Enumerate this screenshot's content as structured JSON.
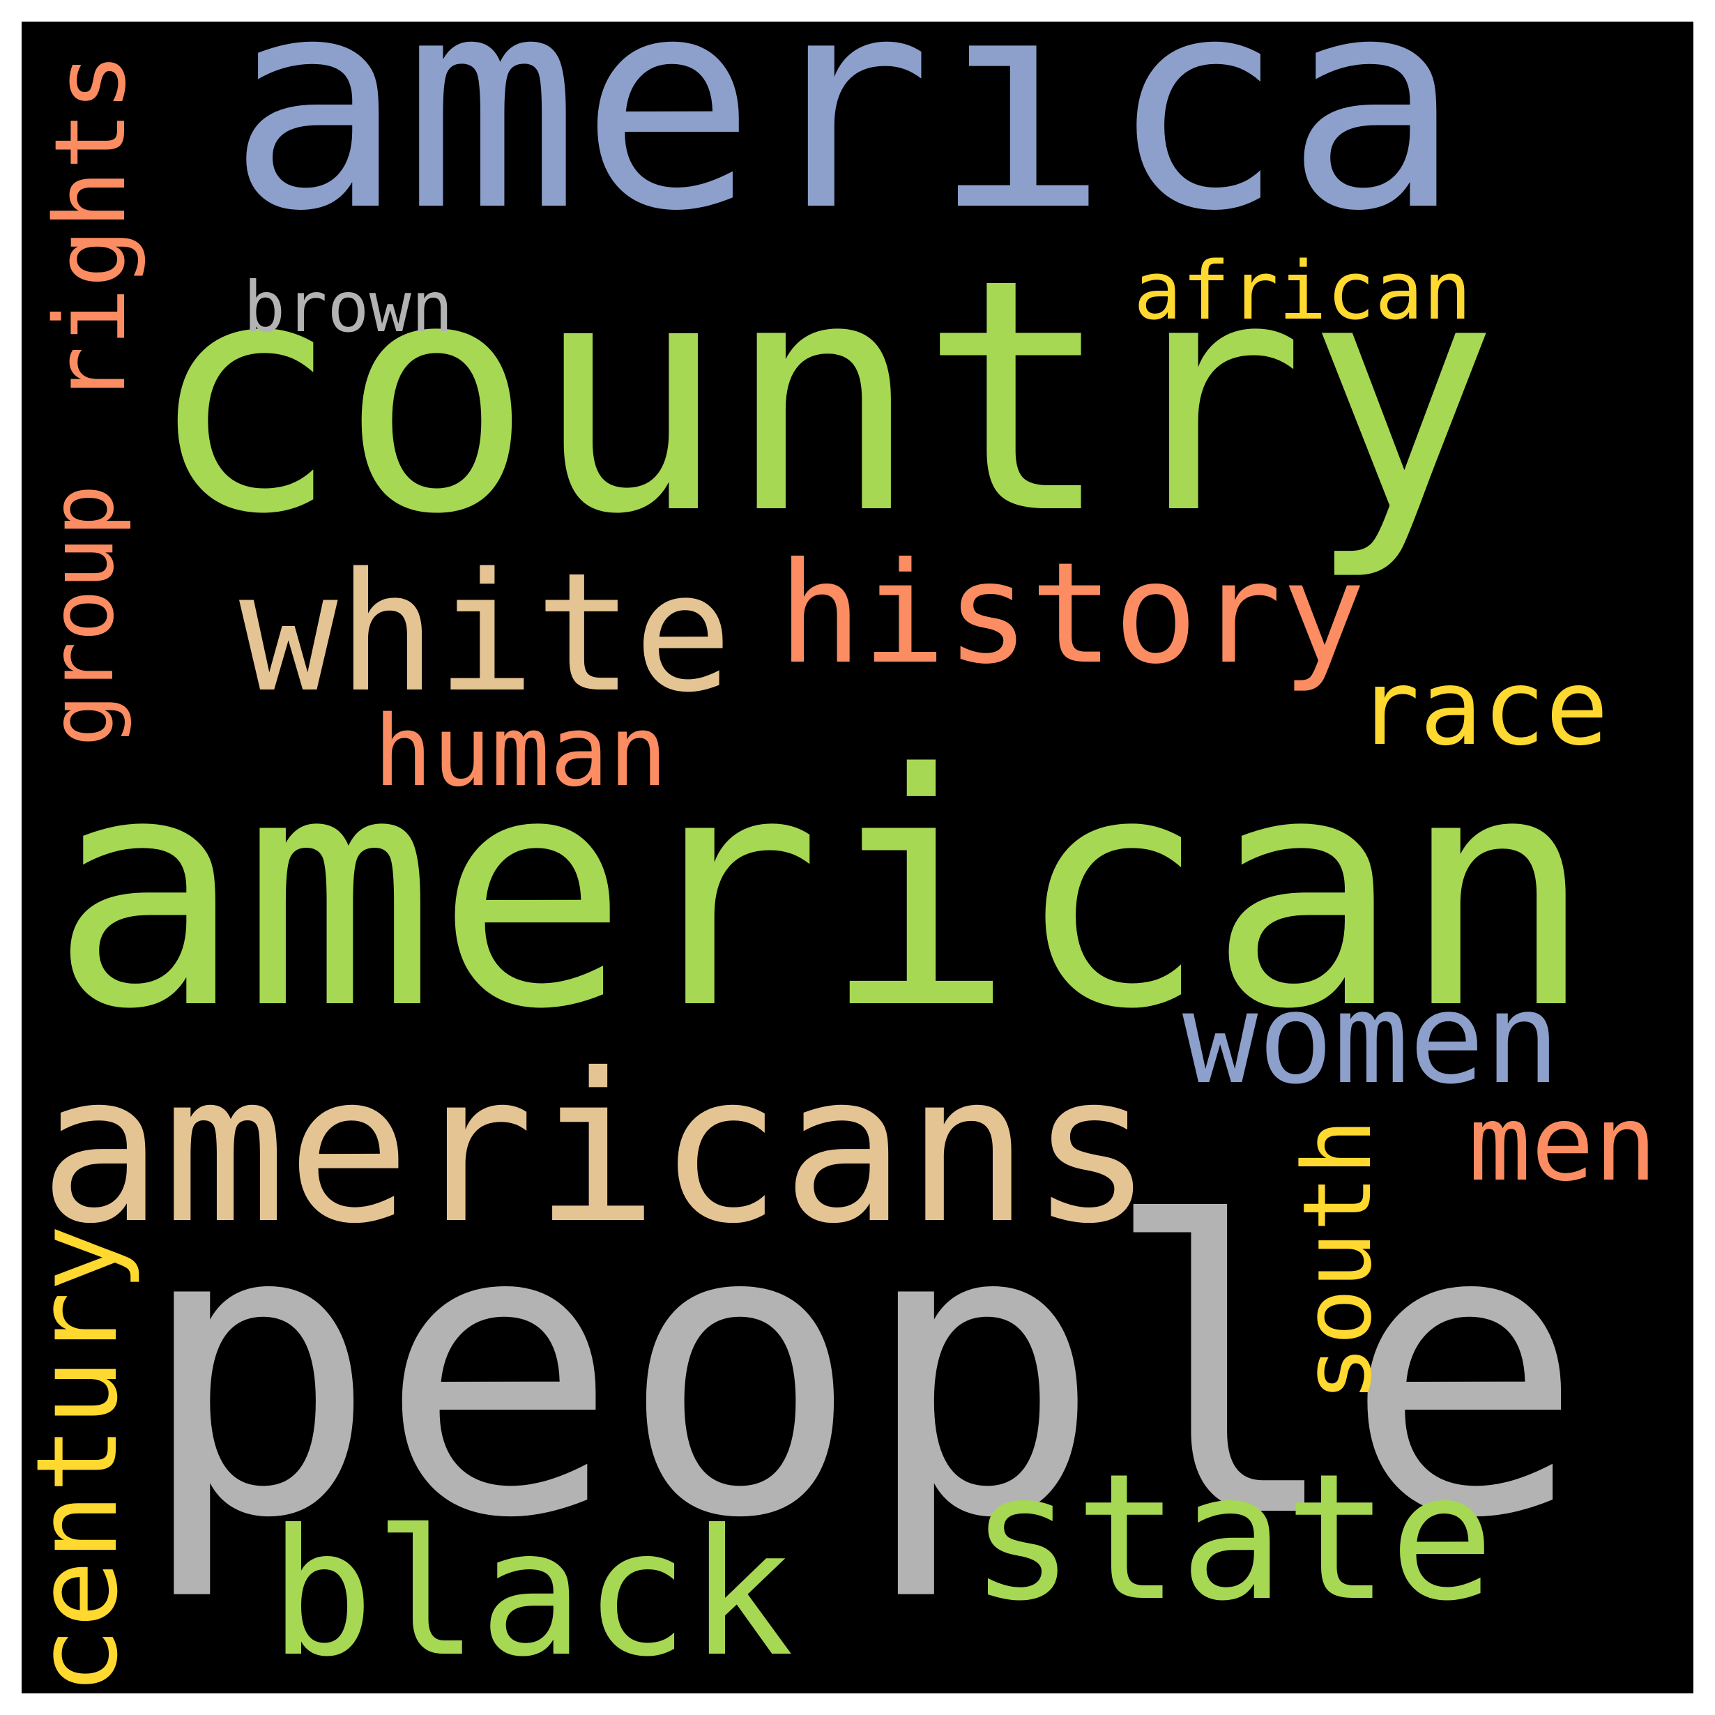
{
  "palette": {
    "background": "#000000",
    "frame": "#ffffff",
    "green": "#a6d854",
    "blue": "#8da0cb",
    "gray": "#b3b3b3",
    "tan": "#e5c494",
    "salmon": "#fc8d62",
    "yellow": "#ffd92f"
  },
  "words": [
    {
      "key": "people",
      "text": "people",
      "color": "#b3b3b3",
      "vertical": false
    },
    {
      "key": "american",
      "text": "american",
      "color": "#a6d854",
      "vertical": false
    },
    {
      "key": "country",
      "text": "country",
      "color": "#a6d854",
      "vertical": false
    },
    {
      "key": "america",
      "text": "america",
      "color": "#8da0cb",
      "vertical": false
    },
    {
      "key": "americans",
      "text": "americans",
      "color": "#e5c494",
      "vertical": false
    },
    {
      "key": "white",
      "text": "white",
      "color": "#e5c494",
      "vertical": false
    },
    {
      "key": "history",
      "text": "history",
      "color": "#fc8d62",
      "vertical": false
    },
    {
      "key": "state",
      "text": "state",
      "color": "#a6d854",
      "vertical": false
    },
    {
      "key": "black",
      "text": "black",
      "color": "#a6d854",
      "vertical": false
    },
    {
      "key": "women",
      "text": "women",
      "color": "#8da0cb",
      "vertical": false
    },
    {
      "key": "century",
      "text": "century",
      "color": "#ffd92f",
      "vertical": true
    },
    {
      "key": "race",
      "text": "race",
      "color": "#ffd92f",
      "vertical": false
    },
    {
      "key": "rights",
      "text": "rights",
      "color": "#fc8d62",
      "vertical": true
    },
    {
      "key": "human",
      "text": "human",
      "color": "#fc8d62",
      "vertical": false
    },
    {
      "key": "south",
      "text": "south",
      "color": "#ffd92f",
      "vertical": true
    },
    {
      "key": "men",
      "text": "men",
      "color": "#fc8d62",
      "vertical": false
    },
    {
      "key": "group",
      "text": "group",
      "color": "#fc8d62",
      "vertical": true
    },
    {
      "key": "african",
      "text": "african",
      "color": "#ffd92f",
      "vertical": false
    },
    {
      "key": "brown",
      "text": "brown",
      "color": "#b3b3b3",
      "vertical": false
    }
  ]
}
